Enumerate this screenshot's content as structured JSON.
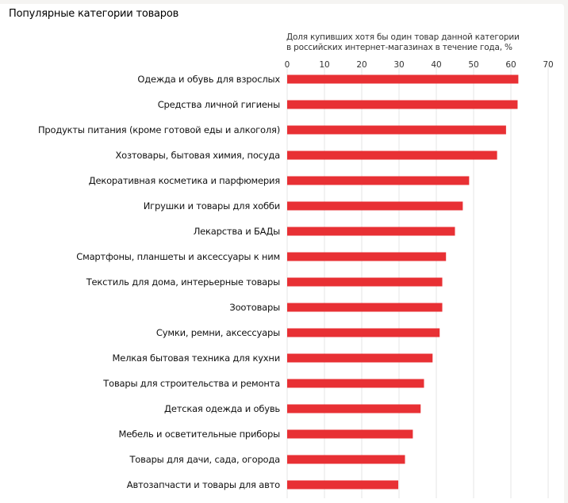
{
  "header": {
    "title": "Популярные категории товаров"
  },
  "chart_data": {
    "type": "bar",
    "orientation": "horizontal",
    "title": "Популярные категории товаров",
    "xlabel": "Доля купивших хотя бы один товар данной категории в российских интернет-магазинах в течение года, %",
    "xlabel_lines": [
      "Доля купивших хотя бы один товар данной категории",
      "в российских интернет-магазинах в течение года, %"
    ],
    "ylabel": "",
    "xlim": [
      0,
      70
    ],
    "xticks": [
      0,
      10,
      20,
      30,
      40,
      50,
      60,
      70
    ],
    "grid": true,
    "axis_position": "top",
    "bar_color": "#e83034",
    "categories": [
      "Одежда и обувь для взрослых",
      "Средства личной гигиены",
      "Продукты питания (кроме готовой еды и алкоголя)",
      "Хозтовары, бытовая химия, посуда",
      "Декоративная косметика и парфюмерия",
      "Игрушки и товары для хобби",
      "Лекарства и БАДы",
      "Смартфоны, планшеты и аксессуары к ним",
      "Текстиль для дома, интерьерные товары",
      "Зоотовары",
      "Сумки, ремни, аксессуары",
      "Мелкая бытовая техника для кухни",
      "Товары для строительства и ремонта",
      "Детская одежда и обувь",
      "Мебель и осветительные приборы",
      "Товары для дачи, сада, огорода",
      "Автозапчасти и товары для авто"
    ],
    "values": [
      62.0,
      61.8,
      58.7,
      56.3,
      48.8,
      47.1,
      45.0,
      42.6,
      41.6,
      41.6,
      40.9,
      39.0,
      36.7,
      35.8,
      33.7,
      31.6,
      29.8
    ]
  }
}
